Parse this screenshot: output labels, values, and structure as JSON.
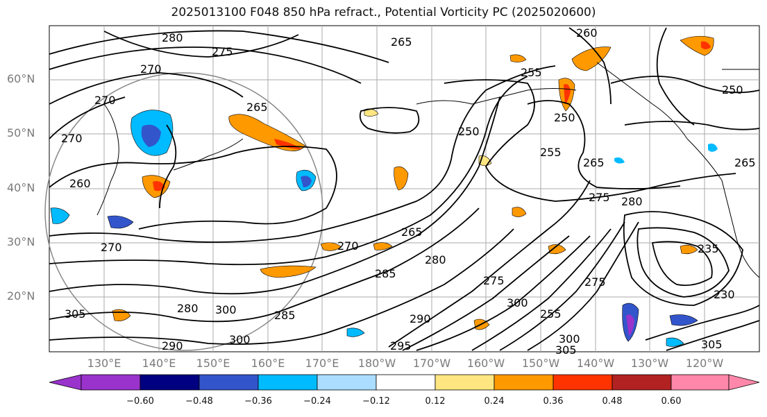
{
  "title": "2025013100 F048 850 hPa refract., Potential Vorticity PC (2025020600)",
  "lat_labels": [
    "60°N",
    "50°N",
    "40°N",
    "30°N",
    "20°N"
  ],
  "lon_labels": [
    "130°E",
    "140°E",
    "150°E",
    "160°E",
    "170°E",
    "180°W",
    "170°W",
    "160°W",
    "150°W",
    "140°W",
    "130°W",
    "120°W"
  ],
  "colorbar": {
    "ticks": [
      "−0.60",
      "−0.48",
      "−0.36",
      "−0.24",
      "−0.12",
      "0.12",
      "0.24",
      "0.36",
      "0.48",
      "0.60"
    ],
    "colors": [
      "#9933cc",
      "#000080",
      "#3355cc",
      "#00bbff",
      "#aaddff",
      "#ffffff",
      "#ffe680",
      "#ff9900",
      "#ff3300",
      "#b22222",
      "#ff88aa"
    ]
  },
  "contour_labels": [
    {
      "text": "280"
    },
    {
      "text": "275"
    },
    {
      "text": "270"
    },
    {
      "text": "270"
    },
    {
      "text": "270"
    },
    {
      "text": "265"
    },
    {
      "text": "265"
    },
    {
      "text": "260"
    },
    {
      "text": "260"
    },
    {
      "text": "255"
    },
    {
      "text": "250"
    },
    {
      "text": "250"
    },
    {
      "text": "250"
    },
    {
      "text": "255"
    },
    {
      "text": "265"
    },
    {
      "text": "275"
    },
    {
      "text": "280"
    },
    {
      "text": "265"
    },
    {
      "text": "270"
    },
    {
      "text": "285"
    },
    {
      "text": "280"
    },
    {
      "text": "275"
    },
    {
      "text": "300"
    },
    {
      "text": "285"
    },
    {
      "text": "275"
    },
    {
      "text": "230"
    },
    {
      "text": "235"
    },
    {
      "text": "300"
    },
    {
      "text": "305"
    },
    {
      "text": "305"
    },
    {
      "text": "290"
    },
    {
      "text": "300"
    },
    {
      "text": "295"
    },
    {
      "text": "300"
    },
    {
      "text": "290"
    },
    {
      "text": "305"
    },
    {
      "text": "280"
    },
    {
      "text": "255"
    },
    {
      "text": "265"
    },
    {
      "text": "270"
    }
  ]
}
